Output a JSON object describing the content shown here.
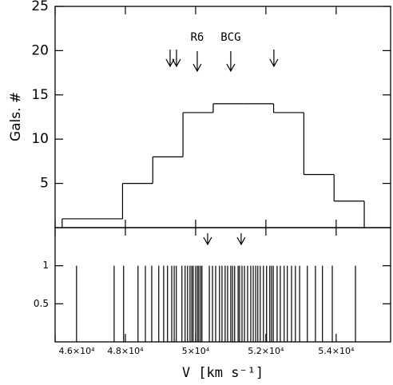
{
  "chart_data": [
    {
      "type": "histogram",
      "ylabel": "Gals. #",
      "bins": [
        46200,
        47060,
        47920,
        48780,
        49640,
        50500,
        51360,
        52220,
        53080,
        53940,
        54800
      ],
      "values": [
        1,
        1,
        5,
        8,
        13,
        14,
        14,
        13,
        6,
        3
      ],
      "xlim": [
        46000,
        55550
      ],
      "ylim": [
        0,
        25
      ],
      "yticks": [
        5,
        10,
        15,
        20,
        25
      ],
      "xticks": [
        {
          "value": 46000,
          "label": "4.6×10⁴"
        },
        {
          "value": 48000,
          "label": "4.8×10⁴"
        },
        {
          "value": 50000,
          "label": "5×10⁴"
        },
        {
          "value": 52000,
          "label": "5.2×10⁴"
        },
        {
          "value": 54000,
          "label": "5.4×10⁴"
        }
      ],
      "arrows": [
        49273,
        49455,
        50046,
        51000,
        52228
      ],
      "annotations": [
        {
          "text": "R6",
          "x": 50046
        },
        {
          "text": "BCG",
          "x": 51000
        }
      ]
    },
    {
      "type": "rug",
      "xlabel": "V [km s⁻¹]",
      "x": [
        46610,
        47680,
        47950,
        48360,
        48570,
        48750,
        48950,
        49090,
        49200,
        49320,
        49390,
        49450,
        49610,
        49700,
        49770,
        49840,
        49890,
        49930,
        50000,
        50050,
        50090,
        50140,
        50180,
        50390,
        50480,
        50570,
        50680,
        50750,
        50840,
        50910,
        51000,
        51050,
        51110,
        51210,
        51250,
        51320,
        51390,
        51480,
        51570,
        51640,
        51710,
        51770,
        51840,
        51930,
        52020,
        52110,
        52160,
        52210,
        52320,
        52410,
        52520,
        52610,
        52730,
        52840,
        52960,
        53180,
        53410,
        53610,
        53890,
        54550
      ],
      "values": [
        1,
        1,
        1,
        1,
        1,
        1,
        1,
        1,
        1,
        1,
        1,
        1,
        1,
        1,
        1,
        1,
        1,
        1,
        1,
        1,
        1,
        1,
        1,
        1,
        1,
        1,
        1,
        1,
        1,
        1,
        1,
        1,
        1,
        1,
        1,
        1,
        1,
        1,
        1,
        1,
        1,
        1,
        1,
        1,
        1,
        1,
        1,
        1,
        1,
        1,
        1,
        1,
        1,
        1,
        1,
        1,
        1,
        1,
        1,
        1
      ],
      "xlim": [
        46000,
        55550
      ],
      "ylim": [
        0,
        1.5
      ],
      "yticks": [
        0.5,
        1
      ],
      "xticks": [
        {
          "value": 46000,
          "label": "4.6×10⁴"
        },
        {
          "value": 48000,
          "label": "4.8×10⁴"
        },
        {
          "value": 50000,
          "label": "5×10⁴"
        },
        {
          "value": 52000,
          "label": "5.2×10⁴"
        },
        {
          "value": 54000,
          "label": "5.4×10⁴"
        }
      ],
      "arrows": [
        50341,
        51296
      ]
    }
  ]
}
